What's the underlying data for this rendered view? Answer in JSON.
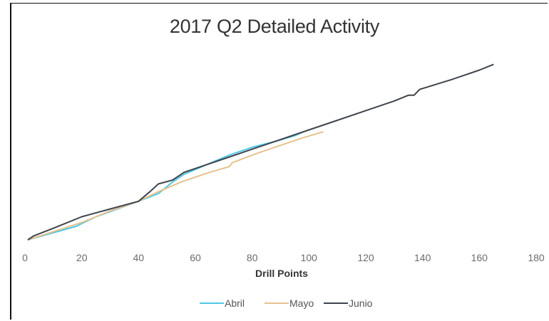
{
  "chart_data": {
    "type": "line",
    "title": "2017 Q2 Detailed Activity",
    "xlabel": "Drill Points",
    "ylabel": "",
    "xlim": [
      0,
      180
    ],
    "ylim": [
      0,
      100
    ],
    "x_ticks": [
      "0",
      "20",
      "40",
      "60",
      "80",
      "100",
      "120",
      "140",
      "160",
      "180"
    ],
    "y_ticks_visible": false,
    "grid": false,
    "legend_position": "bottom",
    "series": [
      {
        "name": "Abril",
        "color": "#4fc8e6",
        "points": [
          [
            1,
            0
          ],
          [
            18,
            7
          ],
          [
            25,
            12
          ],
          [
            40,
            20
          ],
          [
            47,
            24
          ],
          [
            52,
            30
          ],
          [
            56,
            34
          ],
          [
            64,
            39
          ],
          [
            72,
            44
          ],
          [
            80,
            48
          ],
          [
            88,
            51
          ],
          [
            95,
            54
          ],
          [
            98,
            56
          ]
        ]
      },
      {
        "name": "Mayo",
        "color": "#e6c18e",
        "points": [
          [
            1,
            0
          ],
          [
            20,
            9
          ],
          [
            30,
            15
          ],
          [
            40,
            20
          ],
          [
            47,
            25
          ],
          [
            55,
            30
          ],
          [
            65,
            35
          ],
          [
            72,
            38
          ],
          [
            73,
            40
          ],
          [
            82,
            45
          ],
          [
            90,
            49
          ],
          [
            98,
            53
          ],
          [
            105,
            56
          ]
        ]
      },
      {
        "name": "Junio",
        "color": "#3f444c",
        "points": [
          [
            1,
            0
          ],
          [
            3,
            2
          ],
          [
            10,
            6
          ],
          [
            20,
            12
          ],
          [
            30,
            16
          ],
          [
            40,
            20
          ],
          [
            44,
            25
          ],
          [
            47,
            29
          ],
          [
            52,
            31
          ],
          [
            56,
            35
          ],
          [
            64,
            39
          ],
          [
            72,
            43
          ],
          [
            76,
            45
          ],
          [
            80,
            47
          ],
          [
            90,
            52
          ],
          [
            100,
            57
          ],
          [
            110,
            62
          ],
          [
            120,
            67
          ],
          [
            130,
            72
          ],
          [
            135,
            75
          ],
          [
            137,
            75
          ],
          [
            139,
            78
          ],
          [
            150,
            83
          ],
          [
            160,
            88
          ],
          [
            165,
            91
          ]
        ]
      }
    ]
  }
}
